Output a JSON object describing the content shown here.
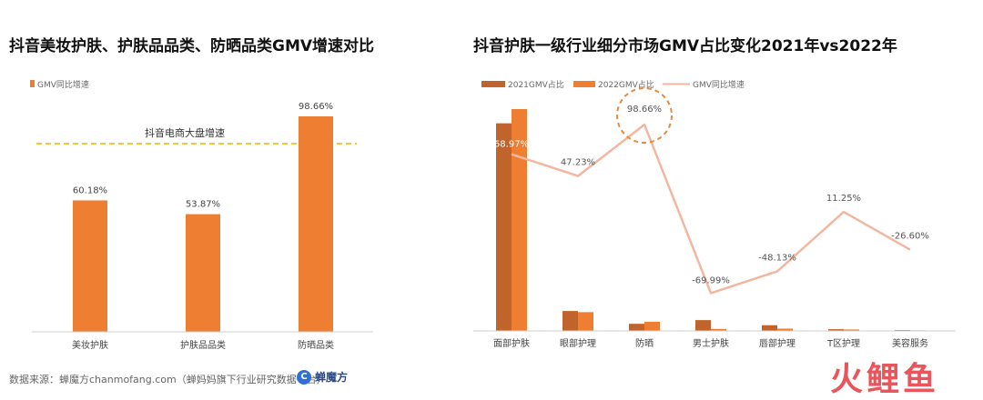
{
  "footer": {
    "source_text": "数据来源：蝉魔方chanmofang.com（蝉妈妈旗下行业研究数据平台）",
    "brand_name": "蝉魔方",
    "watermark": "火鲤鱼"
  },
  "colors": {
    "orange": "#EE7F32",
    "dark_orange": "#C1642B",
    "line": "#F3B79F",
    "dash": "#F0B400",
    "circle": "#E98A3C"
  },
  "chart_data": [
    {
      "type": "bar",
      "title": "抖音美妆护肤、护肤品品类、防晒品类GMV增速对比",
      "legend": [
        "GMV同比增速"
      ],
      "categories": [
        "美妆护肤",
        "护肤品品类",
        "防晒品类"
      ],
      "values": [
        60.18,
        53.87,
        98.66
      ],
      "value_labels": [
        "60.18%",
        "53.87%",
        "98.66%"
      ],
      "ylim": [
        0,
        110
      ],
      "reference_line": {
        "label": "抖音电商大盘增速"
      },
      "grid": false
    },
    {
      "type": "bar",
      "title": "抖音护肤一级行业细分市场GMV占比变化2021年vs2022年",
      "legend": [
        "2021GMV占比",
        "2022GMV占比",
        "GMV同比增速"
      ],
      "categories": [
        "面部护肤",
        "眼部护理",
        "防晒",
        "男士护肤",
        "唇部护理",
        "T区护理",
        "美容服务"
      ],
      "series": [
        {
          "name": "2021GMV占比",
          "type": "bar",
          "values": [
            73.0,
            7.0,
            2.5,
            3.8,
            2.0,
            0.6,
            0.3
          ]
        },
        {
          "name": "2022GMV占比",
          "type": "bar",
          "values": [
            78.0,
            6.6,
            3.2,
            0.7,
            0.8,
            0.5,
            0.2
          ]
        },
        {
          "name": "GMV同比增速",
          "type": "line",
          "values": [
            68.97,
            47.23,
            98.66,
            -69.99,
            -48.13,
            11.25,
            -26.6
          ],
          "labels": [
            "68.97%",
            "47.23%",
            "98.66%",
            "-69.99%",
            "-48.13%",
            "11.25%",
            "-26.60%"
          ]
        }
      ],
      "annotation": "98.66%",
      "grid": false
    }
  ]
}
